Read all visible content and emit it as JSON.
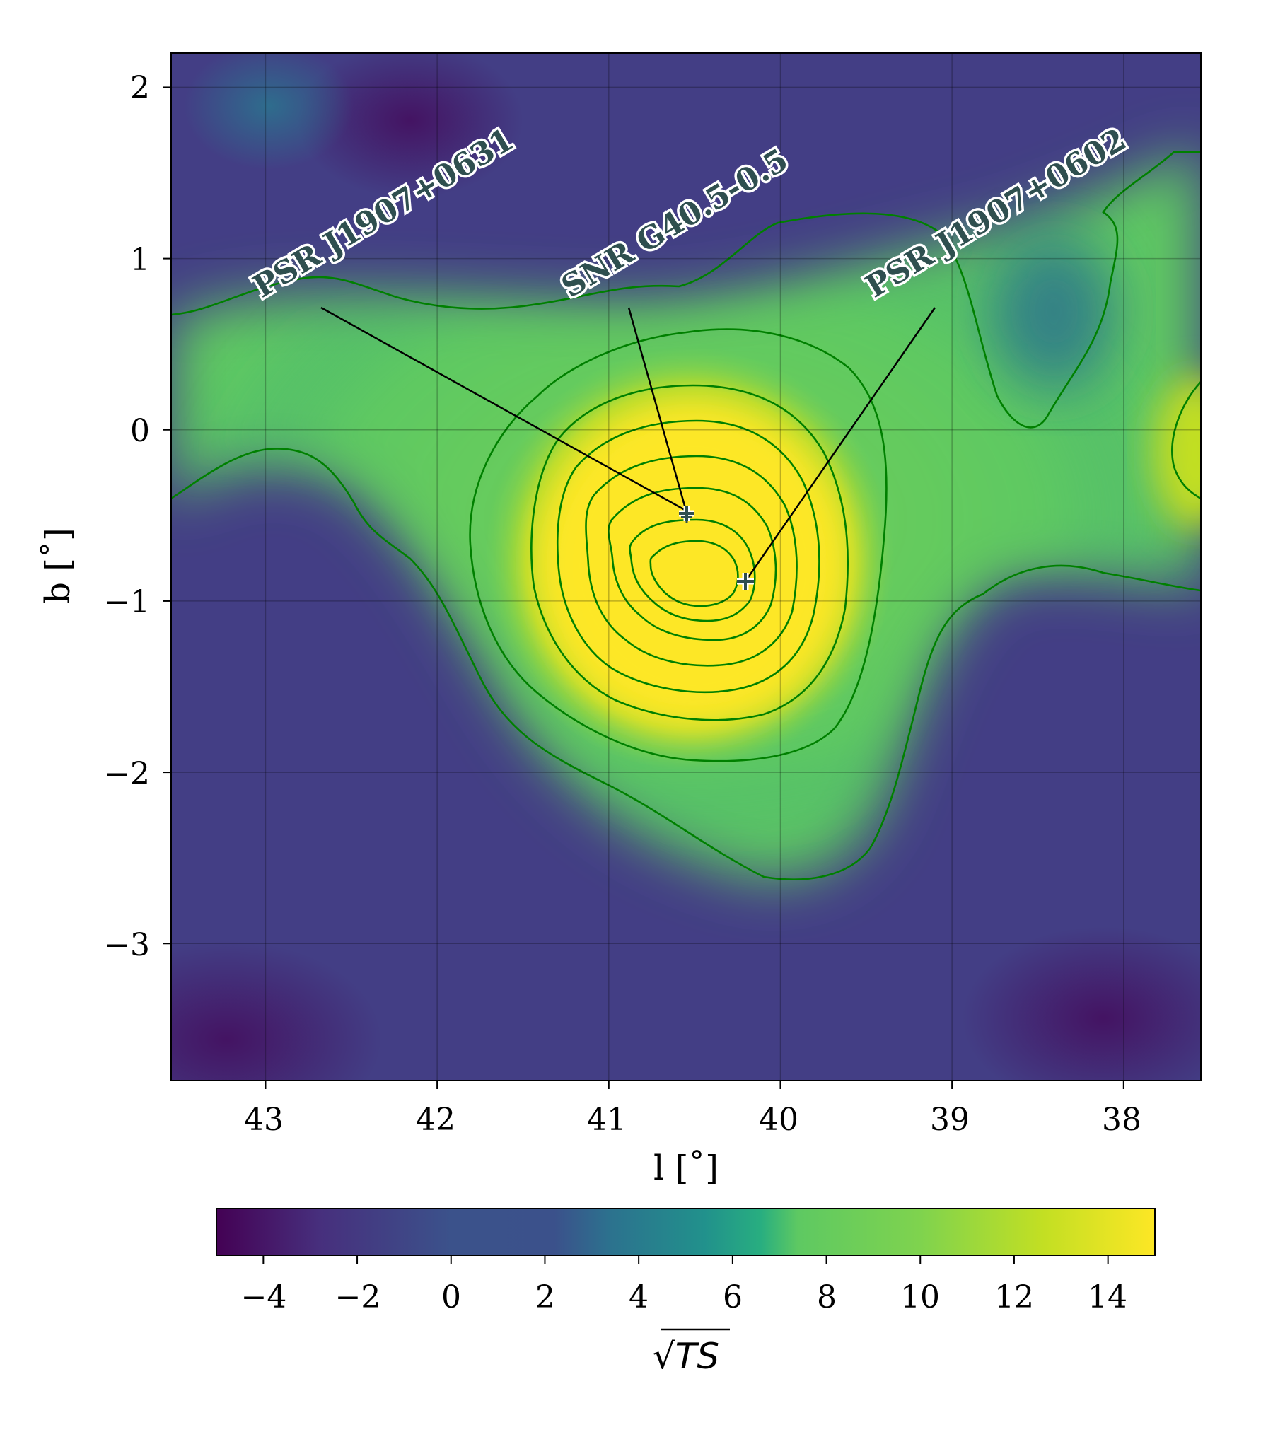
{
  "chart_data": {
    "type": "heatmap",
    "title": "",
    "xlabel": "l [˚]",
    "ylabel": "b [˚]",
    "xlim": [
      43.55,
      37.55
    ],
    "ylim": [
      -3.8,
      2.2
    ],
    "x_ticks": [
      "43",
      "42",
      "41",
      "40",
      "39",
      "38"
    ],
    "y_ticks": [
      "2",
      "1",
      "0",
      "−1",
      "−2",
      "−3"
    ],
    "grid": true,
    "colormap": "viridis",
    "colorbar": {
      "label": "√TS",
      "range": [
        -5,
        15
      ],
      "ticks": [
        "−4",
        "−2",
        "0",
        "2",
        "4",
        "6",
        "8",
        "10",
        "12",
        "14"
      ]
    },
    "contour_color": "#008000",
    "sources": [
      {
        "name": "PSR J1907+0631",
        "l": 40.51,
        "b": -0.48
      },
      {
        "name": "SNR G40.5-0.5",
        "l": 40.51,
        "b": -0.5
      },
      {
        "name": "PSR J1907+0602",
        "l": 40.19,
        "b": -0.89
      }
    ]
  }
}
